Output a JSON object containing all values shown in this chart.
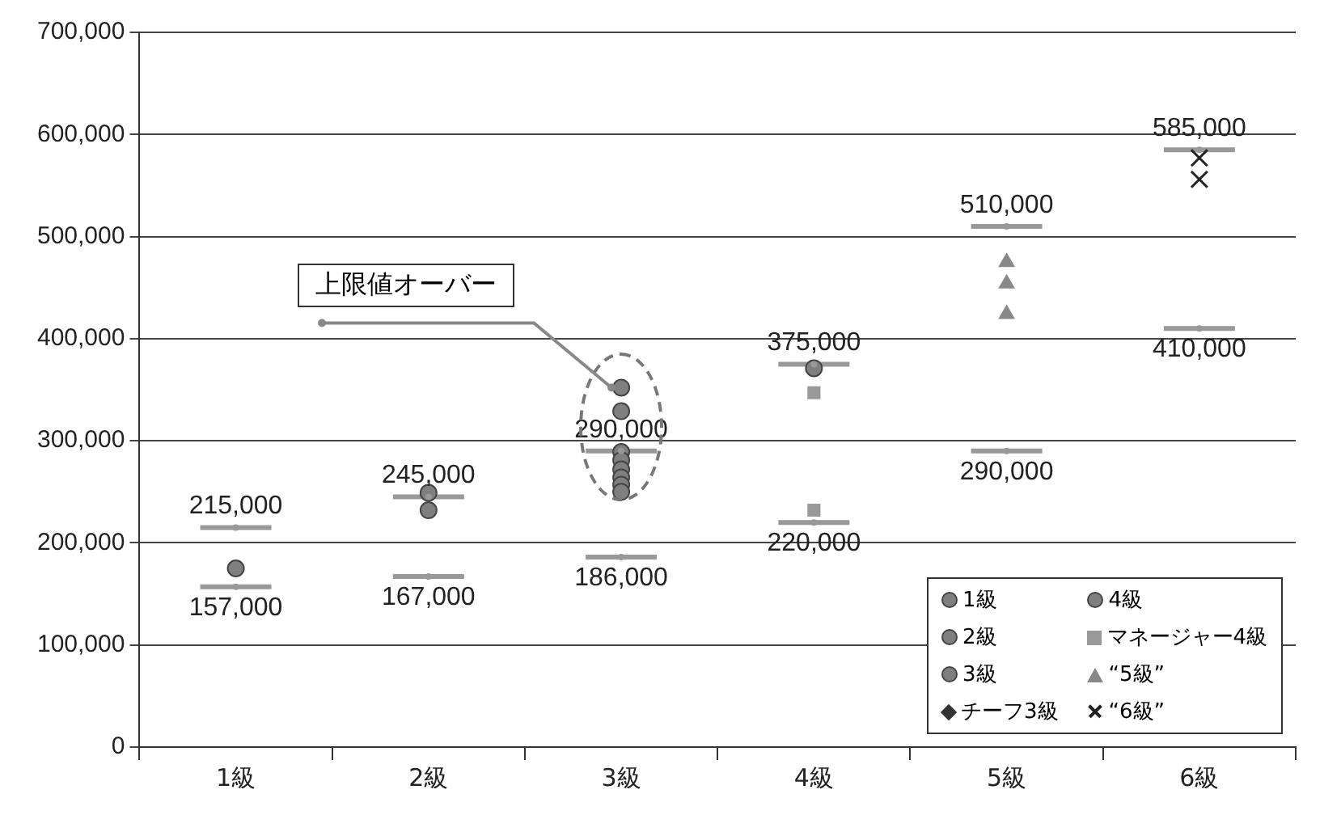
{
  "chart_data": {
    "type": "scatter",
    "categories": [
      "1級",
      "2級",
      "3級",
      "4級",
      "5級",
      "6級"
    ],
    "ylim": [
      0,
      700000
    ],
    "yticks": [
      {
        "value": 0,
        "label": "0"
      },
      {
        "value": 100000,
        "label": "100,000"
      },
      {
        "value": 200000,
        "label": "200,000"
      },
      {
        "value": 300000,
        "label": "300,000"
      },
      {
        "value": 400000,
        "label": "400,000"
      },
      {
        "value": 500000,
        "label": "500,000"
      },
      {
        "value": 600000,
        "label": "600,000"
      },
      {
        "value": 700000,
        "label": "700,000"
      }
    ],
    "grid": "y",
    "legend": "bottom right",
    "series": [
      {
        "color": "#999999",
        "marker": "circle",
        "x": [
          "1級",
          "2級",
          "3級",
          "4級",
          "5級",
          "6級"
        ],
        "values": [
          215000,
          245000,
          290000,
          375000,
          510000,
          585000
        ],
        "value_labels": [
          "215,000",
          "245,000",
          "290,000",
          "375,000",
          "510,000",
          "585,000"
        ]
      },
      {
        "color": "#999999",
        "marker": "circle",
        "x": [
          "1級",
          "2級",
          "3級",
          "4級",
          "5級",
          "6級"
        ],
        "values": [
          157000,
          167000,
          186000,
          220000,
          290000,
          410000
        ],
        "value_labels": [
          "157,000",
          "167,000",
          "186,000",
          "220,000",
          "290,000",
          "410,000"
        ]
      },
      {
        "name": "1級",
        "color": "#7f7f7f",
        "marker": "circle",
        "x": [
          "1級"
        ],
        "values": [
          175000
        ]
      },
      {
        "name": "2級",
        "color": "#7f7f7f",
        "marker": "circle",
        "x": [
          "2級",
          "2級"
        ],
        "values": [
          249000,
          232000
        ]
      },
      {
        "name": "3級",
        "color": "#7f7f7f",
        "marker": "circle",
        "x": [
          "3級",
          "3級",
          "3級",
          "3級",
          "3級",
          "3級",
          "3級",
          "3級"
        ],
        "values": [
          352000,
          329000,
          289000,
          281000,
          272000,
          264000,
          257000,
          250000
        ]
      },
      {
        "name": "チーフ3級",
        "color": "#333333",
        "marker": "diamond",
        "values": [
          null,
          null,
          null,
          null,
          null,
          null
        ]
      },
      {
        "name": "4級",
        "color": "#7f7f7f",
        "marker": "circle",
        "x": [
          "4級"
        ],
        "values": [
          371000
        ]
      },
      {
        "name": "マネージャー4級",
        "color": "#999999",
        "marker": "square",
        "x": [
          "4級",
          "4級"
        ],
        "values": [
          347000,
          232000
        ]
      },
      {
        "name": "“5級”",
        "color": "#888888",
        "marker": "triangle",
        "x": [
          "5級",
          "5級",
          "5級"
        ],
        "values": [
          475000,
          454000,
          424000
        ]
      },
      {
        "name": "“6級”",
        "color": "#222222",
        "marker": "cross",
        "x": [
          "6級",
          "6級"
        ],
        "values": [
          577000,
          556000
        ]
      }
    ],
    "annotations": [
      {
        "text": "上限値オーバー",
        "x": "3級",
        "y": 352000
      }
    ]
  }
}
